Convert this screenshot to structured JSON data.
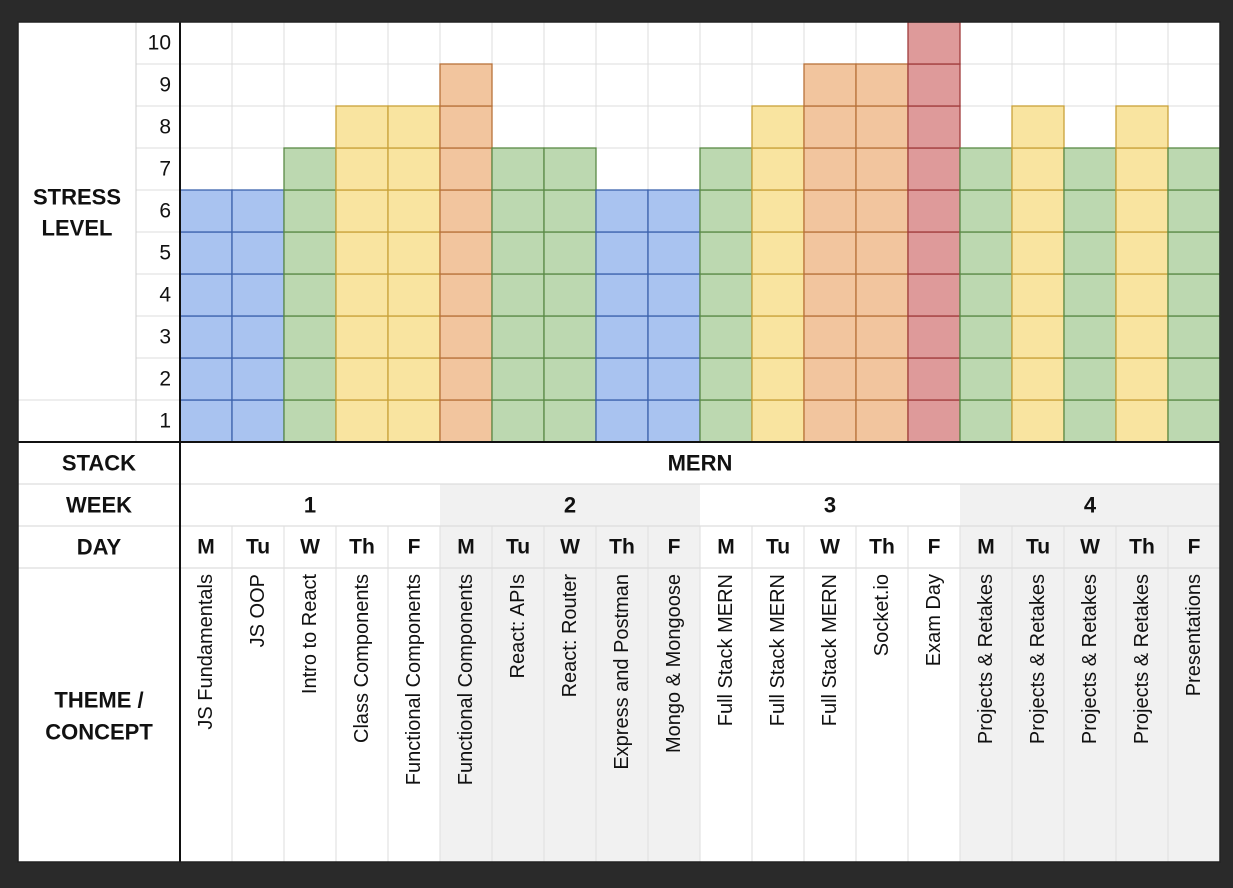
{
  "chart_data": {
    "type": "bar",
    "title": "",
    "ylabel": "STRESS LEVEL",
    "ylim": [
      0,
      10
    ],
    "yticks": [
      1,
      2,
      3,
      4,
      5,
      6,
      7,
      8,
      9,
      10
    ],
    "categories": [
      "JS Fundamentals",
      "JS OOP",
      "Intro to React",
      "Class Components",
      "Functional Components",
      "Functional Components",
      "React: APIs",
      "React: Router",
      "Express and Postman",
      "Mongo & Mongoose",
      "Full Stack MERN",
      "Full Stack MERN",
      "Full Stack MERN",
      "Socket.io",
      "Exam Day",
      "Projects & Retakes",
      "Projects & Retakes",
      "Projects & Retakes",
      "Projects & Retakes",
      "Presentations"
    ],
    "values": [
      6,
      6,
      7,
      8,
      8,
      9,
      7,
      7,
      6,
      6,
      7,
      8,
      9,
      9,
      10,
      7,
      8,
      7,
      8,
      7
    ],
    "days": [
      "M",
      "Tu",
      "W",
      "Th",
      "F",
      "M",
      "Tu",
      "W",
      "Th",
      "F",
      "M",
      "Tu",
      "W",
      "Th",
      "F",
      "M",
      "Tu",
      "W",
      "Th",
      "F"
    ],
    "weeks": [
      "1",
      "2",
      "3",
      "4"
    ],
    "stack": "MERN",
    "row_labels": {
      "stack": "STACK",
      "week": "WEEK",
      "day": "DAY",
      "theme": "THEME / CONCEPT"
    },
    "level_colors": {
      "6": {
        "fill": "#a9c3f0",
        "stroke": "#3d63ad"
      },
      "7": {
        "fill": "#bcd8b0",
        "stroke": "#5a8a46"
      },
      "8": {
        "fill": "#f9e4a0",
        "stroke": "#c9a23a"
      },
      "9": {
        "fill": "#f2c59e",
        "stroke": "#b8723a"
      },
      "10": {
        "fill": "#de9a9a",
        "stroke": "#a03c3c"
      }
    },
    "week_shading": [
      "#ffffff",
      "#f1f1f1",
      "#ffffff",
      "#f1f1f1"
    ],
    "grid": true,
    "legend": "none"
  }
}
